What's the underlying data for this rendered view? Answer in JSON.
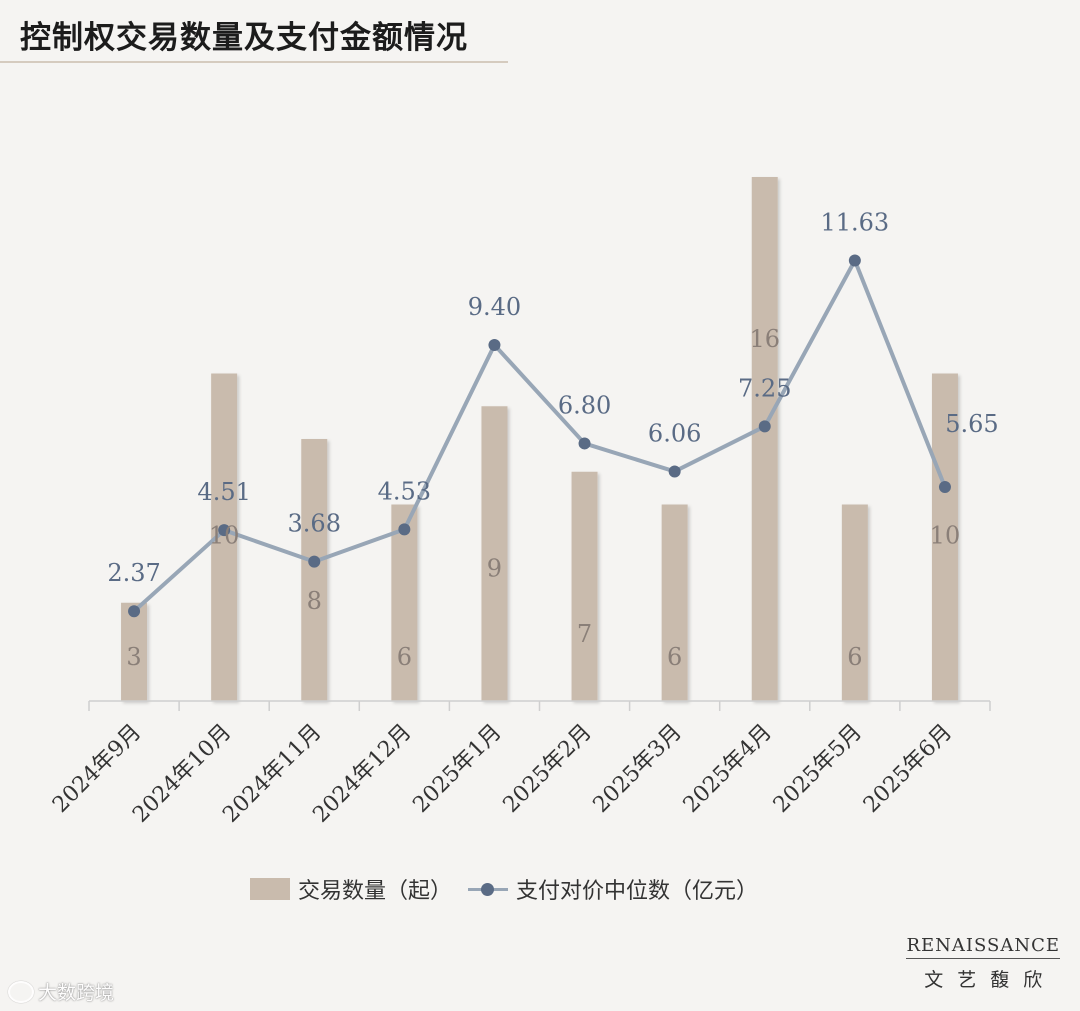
{
  "title": "控制权交易数量及支付金额情况",
  "legend": {
    "bar_label": "交易数量（起）",
    "line_label": "支付对价中位数（亿元）"
  },
  "brand": {
    "name": "RENAISSANCE",
    "cn": "文艺馥欣"
  },
  "watermark": "大数跨境",
  "colors": {
    "bar": "#c9bbad",
    "line": "#98a6b6",
    "marker": "#5a6b85",
    "label": "#5a6b85",
    "bar_label": "#8a7f78"
  },
  "chart_data": {
    "type": "bar+line",
    "categories": [
      "2024年9月",
      "2024年10月",
      "2024年11月",
      "2024年12月",
      "2025年1月",
      "2025年2月",
      "2025年3月",
      "2025年4月",
      "2025年5月",
      "2025年6月"
    ],
    "series": [
      {
        "name": "交易数量（起）",
        "type": "bar",
        "values": [
          3,
          10,
          8,
          6,
          9,
          7,
          6,
          16,
          6,
          10
        ],
        "labels": [
          "3",
          "10",
          "8",
          "6",
          "9",
          "7",
          "6",
          "16",
          "6",
          "10"
        ],
        "ylim": [
          0,
          16
        ]
      },
      {
        "name": "支付对价中位数（亿元）",
        "type": "line",
        "values": [
          2.37,
          4.51,
          3.68,
          4.53,
          9.4,
          6.8,
          6.06,
          7.25,
          11.63,
          5.65
        ],
        "labels": [
          "2.37",
          "4.51",
          "3.68",
          "4.53",
          "9.40",
          "6.80",
          "6.06",
          "7.25",
          "11.63",
          "5.65"
        ],
        "ylim": [
          0,
          14.6
        ]
      }
    ],
    "legend_position": "bottom",
    "grid": false
  }
}
